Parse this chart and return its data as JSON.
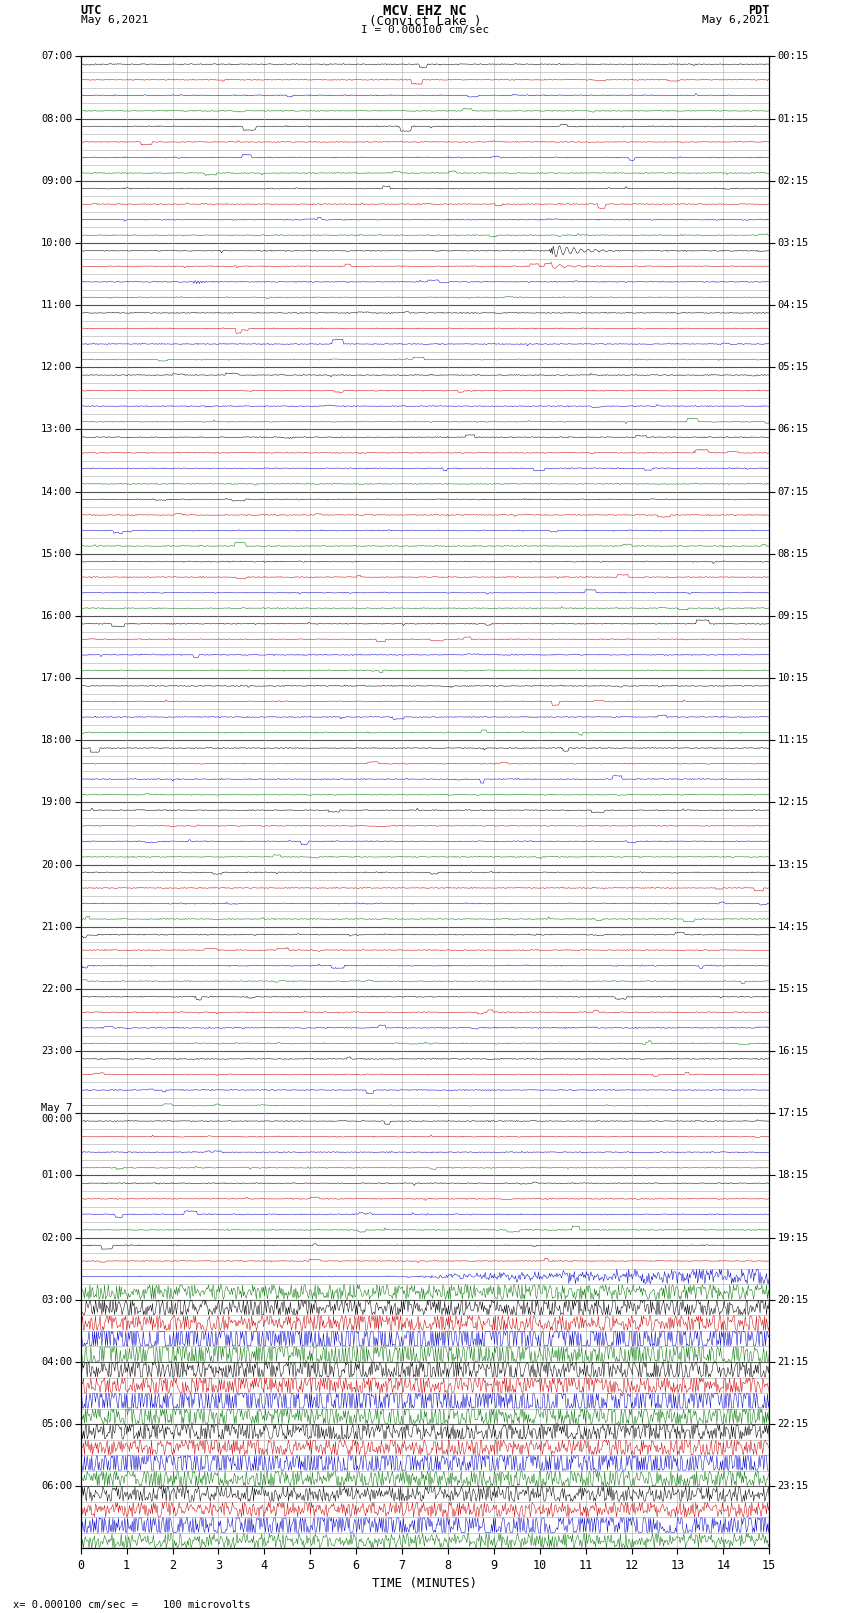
{
  "title_line1": "MCV EHZ NC",
  "title_line2": "(Convict Lake )",
  "scale_text": "I = 0.000100 cm/sec",
  "utc_label": "UTC",
  "utc_date": "May 6,2021",
  "pdt_label": "PDT",
  "pdt_date": "May 6,2021",
  "xlabel": "TIME (MINUTES)",
  "footer": "= 0.000100 cm/sec =    100 microvolts",
  "background_color": "#ffffff",
  "trace_color_cycle": [
    "#000000",
    "#cc0000",
    "#0000cc",
    "#007700"
  ],
  "left_times_utc": [
    "07:00",
    "08:00",
    "09:00",
    "10:00",
    "11:00",
    "12:00",
    "13:00",
    "14:00",
    "15:00",
    "16:00",
    "17:00",
    "18:00",
    "19:00",
    "20:00",
    "21:00",
    "22:00",
    "23:00",
    "May 7\n00:00",
    "01:00",
    "02:00",
    "03:00",
    "04:00",
    "05:00",
    "06:00"
  ],
  "right_times_pdt": [
    "00:15",
    "01:15",
    "02:15",
    "03:15",
    "04:15",
    "05:15",
    "06:15",
    "07:15",
    "08:15",
    "09:15",
    "10:15",
    "11:15",
    "12:15",
    "13:15",
    "14:15",
    "15:15",
    "16:15",
    "17:15",
    "18:15",
    "19:15",
    "20:15",
    "21:15",
    "22:15",
    "23:15"
  ],
  "n_rows": 96,
  "n_cols": 15,
  "x_ticks": [
    0,
    1,
    2,
    3,
    4,
    5,
    6,
    7,
    8,
    9,
    10,
    11,
    12,
    13,
    14,
    15
  ],
  "grid_color": "#aaaaaa",
  "grid_lw": 0.4,
  "hour_grid_color": "#555555",
  "hour_grid_lw": 0.8
}
